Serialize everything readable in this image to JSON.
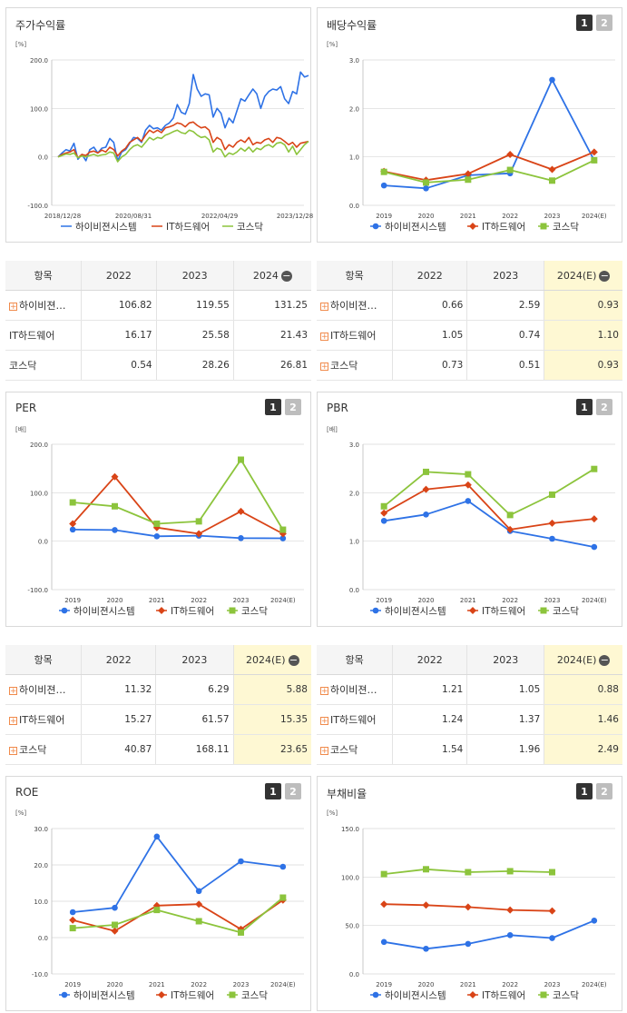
{
  "colors": {
    "s1": "#2e72e6",
    "s2": "#d94417",
    "s3": "#8cc43c"
  },
  "series_names": [
    "하이비젼시스템",
    "IT하드웨어",
    "코스닥"
  ],
  "tables": {
    "stock": {
      "headers": [
        "항목",
        "2022",
        "2023",
        "2024"
      ],
      "minus": "−",
      "rows": [
        {
          "name": "하이비젼…",
          "plus": true,
          "values": [
            "106.82",
            "119.55",
            "131.25"
          ]
        },
        {
          "name": "IT하드웨어",
          "plus": false,
          "values": [
            "16.17",
            "25.58",
            "21.43"
          ]
        },
        {
          "name": "코스닥",
          "plus": false,
          "values": [
            "0.54",
            "28.26",
            "26.81"
          ]
        }
      ]
    },
    "dividend": {
      "headers": [
        "항목",
        "2022",
        "2023",
        "2024(E)"
      ],
      "minus": "−",
      "rows": [
        {
          "name": "하이비젼…",
          "plus": true,
          "values": [
            "0.66",
            "2.59",
            "0.93"
          ]
        },
        {
          "name": "IT하드웨어",
          "plus": true,
          "values": [
            "1.05",
            "0.74",
            "1.10"
          ]
        },
        {
          "name": "코스닥",
          "plus": true,
          "values": [
            "0.73",
            "0.51",
            "0.93"
          ]
        }
      ]
    },
    "per": {
      "headers": [
        "항목",
        "2022",
        "2023",
        "2024(E)"
      ],
      "minus": "−",
      "rows": [
        {
          "name": "하이비젼…",
          "plus": true,
          "values": [
            "11.32",
            "6.29",
            "5.88"
          ]
        },
        {
          "name": "IT하드웨어",
          "plus": true,
          "values": [
            "15.27",
            "61.57",
            "15.35"
          ]
        },
        {
          "name": "코스닥",
          "plus": true,
          "values": [
            "40.87",
            "168.11",
            "23.65"
          ]
        }
      ]
    },
    "pbr": {
      "headers": [
        "항목",
        "2022",
        "2023",
        "2024(E)"
      ],
      "minus": "−",
      "rows": [
        {
          "name": "하이비젼…",
          "plus": true,
          "values": [
            "1.21",
            "1.05",
            "0.88"
          ]
        },
        {
          "name": "IT하드웨어",
          "plus": true,
          "values": [
            "1.24",
            "1.37",
            "1.46"
          ]
        },
        {
          "name": "코스닥",
          "plus": true,
          "values": [
            "1.54",
            "1.96",
            "2.49"
          ]
        }
      ]
    }
  },
  "chart_data": [
    {
      "id": "stock",
      "type": "line",
      "title": "주가수익률",
      "unit": "[%]",
      "ylim": [
        -100,
        200
      ],
      "yticks": [
        "200.0",
        "100.0",
        "0.0",
        "-100.0"
      ],
      "x_labels": [
        "2018/12/28",
        "2020/08/31",
        "2022/04/29",
        "2023/12/28"
      ],
      "markers": false,
      "pager": false,
      "series": [
        {
          "name": "하이비젼시스템",
          "values": [
            0,
            8,
            15,
            12,
            28,
            -5,
            5,
            -8,
            15,
            20,
            8,
            18,
            20,
            38,
            30,
            -8,
            10,
            15,
            28,
            40,
            38,
            30,
            55,
            65,
            58,
            60,
            55,
            65,
            70,
            80,
            108,
            92,
            88,
            110,
            170,
            140,
            125,
            130,
            128,
            82,
            100,
            90,
            60,
            80,
            70,
            95,
            120,
            115,
            128,
            140,
            130,
            100,
            125,
            135,
            140,
            138,
            145,
            120,
            110,
            135,
            130,
            175,
            165,
            168
          ]
        },
        {
          "name": "IT하드웨어",
          "values": [
            0,
            5,
            8,
            10,
            15,
            -2,
            5,
            3,
            10,
            12,
            8,
            14,
            10,
            20,
            15,
            2,
            12,
            18,
            30,
            35,
            40,
            32,
            45,
            55,
            50,
            55,
            50,
            60,
            62,
            65,
            70,
            68,
            62,
            70,
            72,
            65,
            60,
            62,
            55,
            30,
            40,
            35,
            15,
            25,
            20,
            30,
            35,
            30,
            40,
            25,
            30,
            28,
            35,
            38,
            30,
            40,
            38,
            32,
            25,
            30,
            20,
            28,
            30,
            32
          ]
        },
        {
          "name": "코스닥",
          "values": [
            0,
            3,
            6,
            5,
            8,
            -2,
            2,
            0,
            3,
            5,
            2,
            4,
            5,
            10,
            8,
            -10,
            0,
            5,
            15,
            22,
            25,
            20,
            30,
            40,
            35,
            40,
            38,
            45,
            48,
            52,
            55,
            50,
            48,
            55,
            52,
            45,
            40,
            42,
            35,
            10,
            18,
            15,
            0,
            8,
            5,
            10,
            18,
            12,
            20,
            10,
            18,
            15,
            22,
            25,
            20,
            28,
            30,
            25,
            10,
            22,
            5,
            15,
            25,
            32
          ]
        }
      ]
    },
    {
      "id": "dividend",
      "type": "line",
      "title": "배당수익률",
      "unit": "[%]",
      "ylim": [
        0,
        3
      ],
      "yticks": [
        "3.0",
        "2.0",
        "1.0",
        "0.0"
      ],
      "categories": [
        "2019",
        "2020",
        "2021",
        "2022",
        "2023",
        "2024(E)"
      ],
      "markers": true,
      "pager": true,
      "series": [
        {
          "name": "하이비젼시스템",
          "values": [
            0.41,
            0.35,
            0.62,
            0.66,
            2.59,
            0.93
          ]
        },
        {
          "name": "IT하드웨어",
          "values": [
            0.7,
            0.52,
            0.65,
            1.05,
            0.74,
            1.1
          ]
        },
        {
          "name": "코스닥",
          "values": [
            0.69,
            0.47,
            0.53,
            0.73,
            0.51,
            0.93
          ]
        }
      ]
    },
    {
      "id": "per",
      "type": "line",
      "title": "PER",
      "unit": "[배]",
      "ylim": [
        -100,
        200
      ],
      "yticks": [
        "200.0",
        "100.0",
        "0.0",
        "-100.0"
      ],
      "categories": [
        "2019",
        "2020",
        "2021",
        "2022",
        "2023",
        "2024(E)"
      ],
      "markers": true,
      "pager": true,
      "series": [
        {
          "name": "하이비젼시스템",
          "values": [
            24,
            23,
            10,
            11.32,
            6.29,
            5.88
          ]
        },
        {
          "name": "IT하드웨어",
          "values": [
            36,
            133,
            28,
            15.27,
            61.57,
            15.35
          ]
        },
        {
          "name": "코스닥",
          "values": [
            80,
            72,
            36,
            40.87,
            168.11,
            23.65
          ]
        }
      ]
    },
    {
      "id": "pbr",
      "type": "line",
      "title": "PBR",
      "unit": "[배]",
      "ylim": [
        0,
        3
      ],
      "yticks": [
        "3.0",
        "2.0",
        "1.0",
        "0.0"
      ],
      "categories": [
        "2019",
        "2020",
        "2021",
        "2022",
        "2023",
        "2024(E)"
      ],
      "markers": true,
      "pager": true,
      "series": [
        {
          "name": "하이비젼시스템",
          "values": [
            1.42,
            1.55,
            1.83,
            1.21,
            1.05,
            0.88
          ]
        },
        {
          "name": "IT하드웨어",
          "values": [
            1.58,
            2.07,
            2.16,
            1.24,
            1.37,
            1.46
          ]
        },
        {
          "name": "코스닥",
          "values": [
            1.72,
            2.43,
            2.38,
            1.54,
            1.96,
            2.49
          ]
        }
      ]
    },
    {
      "id": "roe",
      "type": "line",
      "title": "ROE",
      "unit": "[%]",
      "ylim": [
        -10,
        30
      ],
      "yticks": [
        "30.0",
        "20.0",
        "10.0",
        "0.0",
        "-10.0"
      ],
      "categories": [
        "2019",
        "2020",
        "2021",
        "2022",
        "2023",
        "2024(E)"
      ],
      "markers": true,
      "pager": true,
      "series": [
        {
          "name": "하이비젼시스템",
          "values": [
            7.0,
            8.2,
            27.8,
            12.8,
            21.0,
            19.5
          ]
        },
        {
          "name": "IT하드웨어",
          "values": [
            4.8,
            1.8,
            8.8,
            9.2,
            2.3,
            10.3
          ]
        },
        {
          "name": "코스닥",
          "values": [
            2.6,
            3.5,
            7.6,
            4.5,
            1.4,
            11.0
          ]
        }
      ]
    },
    {
      "id": "debt",
      "type": "line",
      "title": "부채비율",
      "unit": "[%]",
      "ylim": [
        0,
        150
      ],
      "yticks": [
        "150.0",
        "100.0",
        "50.0",
        "0.0"
      ],
      "categories": [
        "2019",
        "2020",
        "2021",
        "2022",
        "2023",
        "2024(E)"
      ],
      "markers": true,
      "pager": true,
      "series": [
        {
          "name": "하이비젼시스템",
          "values": [
            33,
            26,
            31,
            40,
            37,
            55
          ]
        },
        {
          "name": "IT하드웨어",
          "values": [
            72,
            71,
            69,
            66,
            65,
            null
          ]
        },
        {
          "name": "코스닥",
          "values": [
            103,
            108,
            105,
            106,
            105,
            null
          ]
        }
      ]
    }
  ]
}
